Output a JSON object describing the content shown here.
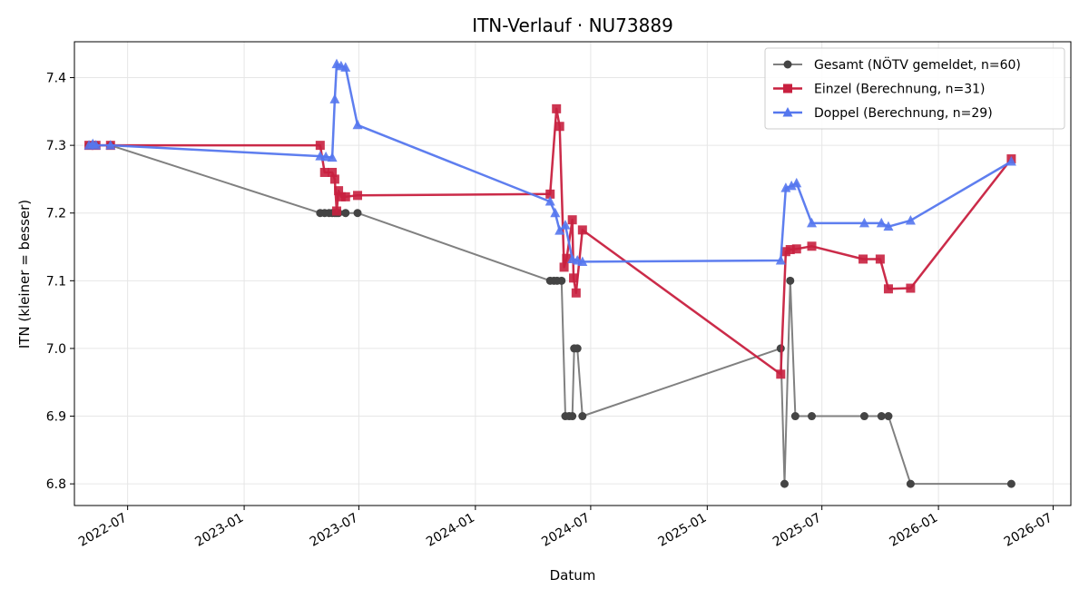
{
  "chart_data": {
    "type": "line",
    "title": "ITN-Verlauf · NU73889",
    "xlabel": "Datum",
    "ylabel": "ITN  (kleiner = besser)",
    "x_axis_type": "date",
    "xlim": [
      "2022-04-08",
      "2026-07-29"
    ],
    "ylim": [
      6.768,
      7.453
    ],
    "x_ticks": [
      "2022-07",
      "2023-01",
      "2023-07",
      "2024-01",
      "2024-07",
      "2025-01",
      "2025-07",
      "2026-01",
      "2026-07"
    ],
    "y_ticks": [
      6.8,
      6.9,
      7.0,
      7.1,
      7.2,
      7.3,
      7.4
    ],
    "grid": true,
    "legend_position": "top-right",
    "series": [
      {
        "name": "Gesamt (NÖTV gemeldet, n=60)",
        "color": "#808080",
        "marker": "circle",
        "points": [
          [
            "2022-05-01",
            7.3
          ],
          [
            "2022-05-07",
            7.3
          ],
          [
            "2022-05-12",
            7.3
          ],
          [
            "2022-06-04",
            7.3
          ],
          [
            "2023-05-01",
            7.2
          ],
          [
            "2023-05-08",
            7.2
          ],
          [
            "2023-05-15",
            7.2
          ],
          [
            "2023-05-20",
            7.2
          ],
          [
            "2023-05-24",
            7.2
          ],
          [
            "2023-05-27",
            7.2
          ],
          [
            "2023-05-30",
            7.2
          ],
          [
            "2023-06-10",
            7.2
          ],
          [
            "2023-06-29",
            7.2
          ],
          [
            "2024-04-28",
            7.1
          ],
          [
            "2024-05-04",
            7.1
          ],
          [
            "2024-05-09",
            7.1
          ],
          [
            "2024-05-16",
            7.1
          ],
          [
            "2024-05-22",
            6.9
          ],
          [
            "2024-05-28",
            6.9
          ],
          [
            "2024-06-02",
            6.9
          ],
          [
            "2024-06-05",
            7.0
          ],
          [
            "2024-06-10",
            7.0
          ],
          [
            "2024-06-18",
            6.9
          ],
          [
            "2025-04-27",
            7.0
          ],
          [
            "2025-05-03",
            6.8
          ],
          [
            "2025-05-12",
            7.1
          ],
          [
            "2025-05-20",
            6.9
          ],
          [
            "2025-06-15",
            6.9
          ],
          [
            "2025-09-06",
            6.9
          ],
          [
            "2025-10-03",
            6.9
          ],
          [
            "2025-10-14",
            6.9
          ],
          [
            "2025-11-18",
            6.8
          ],
          [
            "2026-04-26",
            6.8
          ]
        ]
      },
      {
        "name": "Einzel (Berechnung, n=31)",
        "color": "#c8203f",
        "marker": "square",
        "points": [
          [
            "2022-05-01",
            7.3
          ],
          [
            "2022-05-12",
            7.3
          ],
          [
            "2022-06-04",
            7.3
          ],
          [
            "2023-05-01",
            7.3
          ],
          [
            "2023-05-08",
            7.26
          ],
          [
            "2023-05-20",
            7.26
          ],
          [
            "2023-05-24",
            7.25
          ],
          [
            "2023-05-27",
            7.203
          ],
          [
            "2023-05-30",
            7.233
          ],
          [
            "2023-06-03",
            7.224
          ],
          [
            "2023-06-10",
            7.224
          ],
          [
            "2023-06-29",
            7.226
          ],
          [
            "2024-04-28",
            7.228
          ],
          [
            "2024-05-08",
            7.354
          ],
          [
            "2024-05-13",
            7.328
          ],
          [
            "2024-05-20",
            7.12
          ],
          [
            "2024-05-24",
            7.133
          ],
          [
            "2024-06-02",
            7.19
          ],
          [
            "2024-06-04",
            7.104
          ],
          [
            "2024-06-08",
            7.082
          ],
          [
            "2024-06-18",
            7.175
          ],
          [
            "2025-04-27",
            6.962
          ],
          [
            "2025-05-05",
            7.143
          ],
          [
            "2025-05-12",
            7.146
          ],
          [
            "2025-05-22",
            7.147
          ],
          [
            "2025-06-15",
            7.151
          ],
          [
            "2025-09-04",
            7.132
          ],
          [
            "2025-10-01",
            7.132
          ],
          [
            "2025-10-14",
            7.088
          ],
          [
            "2025-11-18",
            7.089
          ],
          [
            "2026-04-26",
            7.28
          ]
        ]
      },
      {
        "name": "Doppel (Berechnung, n=29)",
        "color": "#5577ee",
        "marker": "triangle",
        "points": [
          [
            "2022-05-01",
            7.3
          ],
          [
            "2022-05-07",
            7.302
          ],
          [
            "2022-05-12",
            7.3
          ],
          [
            "2022-06-04",
            7.3
          ],
          [
            "2023-05-01",
            7.284
          ],
          [
            "2023-05-10",
            7.283
          ],
          [
            "2023-05-20",
            7.282
          ],
          [
            "2023-05-24",
            7.368
          ],
          [
            "2023-05-27",
            7.42
          ],
          [
            "2023-06-03",
            7.417
          ],
          [
            "2023-06-10",
            7.415
          ],
          [
            "2023-06-29",
            7.33
          ],
          [
            "2024-04-28",
            7.217
          ],
          [
            "2024-05-06",
            7.2
          ],
          [
            "2024-05-13",
            7.174
          ],
          [
            "2024-05-22",
            7.182
          ],
          [
            "2024-06-02",
            7.132
          ],
          [
            "2024-06-10",
            7.13
          ],
          [
            "2024-06-18",
            7.128
          ],
          [
            "2025-04-27",
            7.13
          ],
          [
            "2025-05-05",
            7.237
          ],
          [
            "2025-05-14",
            7.24
          ],
          [
            "2025-05-22",
            7.244
          ],
          [
            "2025-06-15",
            7.185
          ],
          [
            "2025-09-06",
            7.185
          ],
          [
            "2025-10-03",
            7.185
          ],
          [
            "2025-10-14",
            7.18
          ],
          [
            "2025-11-18",
            7.189
          ],
          [
            "2026-04-26",
            7.276
          ]
        ]
      }
    ]
  }
}
